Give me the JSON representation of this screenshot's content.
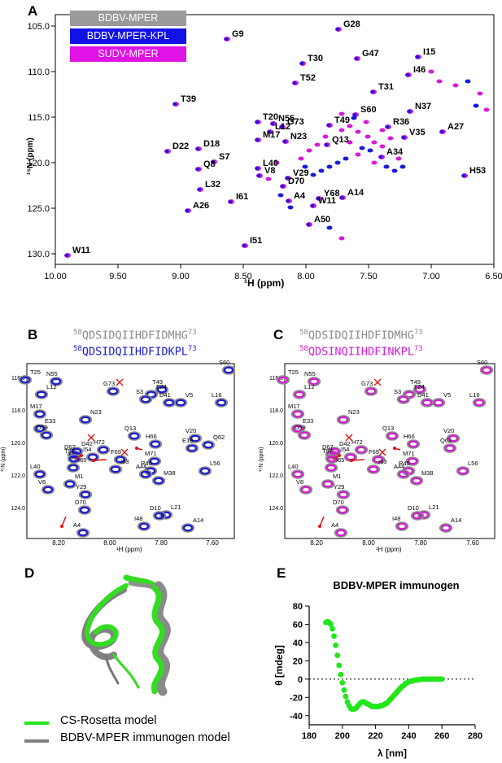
{
  "panels": {
    "a": "A",
    "b": "B",
    "c": "C",
    "d": "D",
    "e": "E"
  },
  "colors": {
    "gray": "#8c8c8c",
    "blue": "#1a1ad6",
    "magenta": "#d61ad6",
    "green": "#22e61a",
    "red": "#e01010"
  },
  "panel_a": {
    "legend": [
      "BDBV-MPER",
      "BDBV-MPER-KPL",
      "SUDV-MPER"
    ],
    "xlabel": "¹H (ppm)",
    "ylabel": "¹⁵N (ppm)",
    "x_ticks": [
      "10.00",
      "9.50",
      "9.00",
      "8.50",
      "8.00",
      "7.50",
      "7.00",
      "6.50"
    ],
    "y_ticks": [
      "105.0",
      "110.0",
      "115.0",
      "120.0",
      "125.0",
      "130.0"
    ],
    "peak_labels": [
      "G28",
      "G9",
      "G47",
      "I15",
      "T30",
      "I46",
      "T52",
      "T31",
      "T39",
      "S60",
      "N37",
      "T20",
      "N55",
      "G73",
      "T49",
      "L12",
      "R36",
      "A27",
      "M17",
      "N23",
      "Q13",
      "V35",
      "D22",
      "D18",
      "A34",
      "S7",
      "Q8",
      "L40",
      "H53",
      "V8",
      "V29",
      "D70",
      "L32",
      "I61",
      "A4",
      "Y68",
      "A14",
      "W11",
      "A26",
      "A50",
      "I51",
      "W11"
    ]
  },
  "panel_b": {
    "seq_ref": "QDSIDQIIHDFIDMHG",
    "seq_mut": "QDSIDQIIHDFIDKPL",
    "seq_start": "58",
    "seq_end": "73",
    "xlabel": "¹H (ppm)",
    "ylabel": "¹⁵N (ppm)",
    "x_ticks": [
      "8.20",
      "8.00",
      "7.80",
      "7.60"
    ],
    "y_ticks": [
      "116.0",
      "118.0",
      "120.0",
      "122.0",
      "124.0"
    ],
    "peak_labels": [
      "T25",
      "N55",
      "S60",
      "L12",
      "G73",
      "T49",
      "F24",
      "S3",
      "D41",
      "V5",
      "L16",
      "M17",
      "N23",
      "Q13",
      "H66",
      "E33",
      "D59",
      "D67",
      "D42",
      "F69",
      "T57",
      "I65",
      "R45",
      "A44",
      "M38",
      "L40",
      "V8",
      "M1",
      "Y29",
      "D70",
      "L21",
      "D10",
      "I48",
      "A14",
      "A4",
      "V20",
      "L56",
      "H72",
      "I54",
      "I63",
      "M71",
      "E19",
      "Q62"
    ]
  },
  "panel_c": {
    "seq_ref": "QDSIDQIIHDFIDMHG",
    "seq_mut": "QDSINQIIHDFINKPL",
    "seq_start": "58",
    "seq_end": "73",
    "xlabel": "¹H (ppm)",
    "ylabel": "¹⁵N (ppm)",
    "x_ticks": [
      "8.20",
      "8.00",
      "7.80",
      "7.60"
    ],
    "y_ticks": [
      "116.0",
      "118.0",
      "120.0",
      "122.0",
      "124.0"
    ],
    "peak_labels": [
      "T25",
      "N55",
      "S60",
      "L12",
      "G73",
      "T49",
      "F24",
      "S3",
      "D41",
      "V5",
      "L16",
      "M17",
      "N23",
      "Q13",
      "H66",
      "E33",
      "D59",
      "D67",
      "D42",
      "F69",
      "T57",
      "I65",
      "R45",
      "A44",
      "M38",
      "L40",
      "V8",
      "M1",
      "Y29",
      "D70",
      "L21",
      "D10",
      "I48",
      "A14",
      "A4",
      "V20",
      "L56",
      "H72",
      "I54",
      "I63",
      "M71",
      "Q62"
    ]
  },
  "panel_d": {
    "legend": [
      "CS-Rosetta model",
      "BDBV-MPER immunogen model"
    ]
  },
  "chart_data": {
    "type": "scatter",
    "title": "BDBV-MPER immunogen",
    "xlabel": "λ [nm]",
    "ylabel": "θ [mdeg]",
    "xlim": [
      180,
      280
    ],
    "ylim": [
      -50,
      80
    ],
    "x_ticks": [
      180,
      200,
      220,
      240,
      260,
      280
    ],
    "y_ticks": [
      -40,
      -20,
      0,
      20,
      40,
      60,
      80
    ],
    "reference_line": 0,
    "x": [
      190,
      191,
      192,
      193,
      194,
      195,
      196,
      197,
      198,
      199,
      200,
      201,
      202,
      203,
      204,
      205,
      206,
      207,
      208,
      209,
      210,
      211,
      212,
      213,
      214,
      215,
      216,
      217,
      218,
      219,
      220,
      221,
      222,
      223,
      224,
      225,
      226,
      227,
      228,
      229,
      230,
      231,
      232,
      233,
      234,
      235,
      236,
      237,
      238,
      239,
      240,
      241,
      242,
      243,
      244,
      245,
      246,
      247,
      248,
      249,
      250,
      251,
      252,
      253,
      254,
      255,
      256,
      257,
      258,
      259,
      260
    ],
    "values": [
      62,
      63,
      62,
      60,
      55,
      47,
      37,
      26,
      15,
      5,
      -4,
      -12,
      -19,
      -25,
      -29,
      -32,
      -33,
      -33,
      -32,
      -30,
      -28,
      -26,
      -25,
      -25,
      -26,
      -27,
      -28,
      -29,
      -30,
      -30,
      -30,
      -30,
      -30,
      -29,
      -29,
      -28,
      -27,
      -26,
      -24,
      -22,
      -20,
      -18,
      -16,
      -14,
      -12,
      -10,
      -8,
      -7,
      -5,
      -4,
      -3,
      -2.5,
      -2,
      -1.5,
      -1,
      -1,
      -0.5,
      -0.5,
      0,
      0,
      0,
      0,
      0,
      0,
      0,
      0,
      0,
      0,
      0,
      0,
      0
    ]
  }
}
